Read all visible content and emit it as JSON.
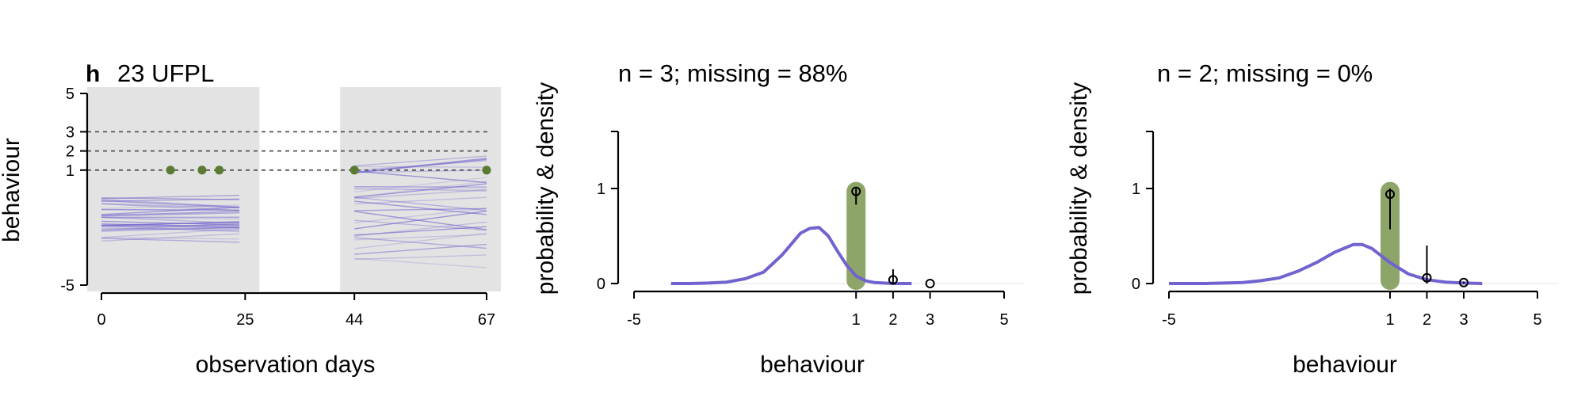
{
  "chart_data": [
    {
      "type": "line",
      "panel_label": "h",
      "title": "23 UFPL",
      "xlabel": "observation days",
      "ylabel": "behaviour",
      "x_ticks": [
        0,
        25,
        44,
        67
      ],
      "y_ticks": [
        5,
        3,
        2,
        1,
        -5
      ],
      "xlim": [
        0,
        67
      ],
      "ylim": [
        -5,
        5
      ],
      "reference_lines_y": [
        3,
        2,
        1
      ],
      "shaded_periods": [
        [
          0,
          25
        ],
        [
          44,
          67
        ]
      ],
      "colors": {
        "shade": "#e3e3e3",
        "trajectories": "#6e62cc",
        "observations": "#5b7a32"
      },
      "trajectory_bands": [
        {
          "x_range": [
            0,
            24
          ],
          "center": -1.5,
          "spread": 1.5,
          "count": 30
        },
        {
          "x_range": [
            44,
            67
          ],
          "center": -1.1,
          "spread": 3.2,
          "count": 30
        }
      ],
      "observations": [
        {
          "x": 12,
          "y": 1
        },
        {
          "x": 17.5,
          "y": 1
        },
        {
          "x": 20.5,
          "y": 1
        },
        {
          "x": 44,
          "y": 1
        },
        {
          "x": 67,
          "y": 1
        }
      ]
    },
    {
      "type": "line",
      "title": "n = 3; missing = 88%",
      "xlabel": "behaviour",
      "ylabel": "probability & density",
      "x_ticks": [
        -5,
        1,
        2,
        3,
        5
      ],
      "y_ticks": [
        0,
        1
      ],
      "xlim": [
        -5,
        5
      ],
      "ylim": [
        0,
        1.6
      ],
      "highlight_x": 1,
      "colors": {
        "density": "#7063cf",
        "highlight": "#8ea56a"
      },
      "density_curve": {
        "x": [
          -4,
          -3.5,
          -3,
          -2.5,
          -2,
          -1.5,
          -1,
          -0.5,
          -0.25,
          0,
          0.25,
          0.5,
          0.75,
          1,
          1.25,
          1.5,
          2,
          2.5
        ],
        "y": [
          0,
          0,
          0.005,
          0.015,
          0.05,
          0.12,
          0.3,
          0.53,
          0.58,
          0.59,
          0.5,
          0.34,
          0.19,
          0.08,
          0.03,
          0.01,
          0,
          0
        ]
      },
      "point_probabilities": [
        {
          "x": 1,
          "p": 0.97,
          "low": 0.83,
          "high": 1.0
        },
        {
          "x": 2,
          "p": 0.04,
          "low": 0.0,
          "high": 0.15
        },
        {
          "x": 3,
          "p": 0.0,
          "low": 0.0,
          "high": 0.0
        }
      ]
    },
    {
      "type": "line",
      "title": "n = 2; missing = 0%",
      "xlabel": "behaviour",
      "ylabel": "probability & density",
      "x_ticks": [
        -5,
        1,
        2,
        3,
        5
      ],
      "y_ticks": [
        0,
        1
      ],
      "xlim": [
        -5,
        5
      ],
      "ylim": [
        0,
        1.6
      ],
      "highlight_x": 1,
      "colors": {
        "density": "#7063cf",
        "highlight": "#8ea56a"
      },
      "density_curve": {
        "x": [
          -5,
          -4,
          -3.5,
          -3,
          -2.5,
          -2,
          -1.5,
          -1,
          -0.5,
          0,
          0.25,
          0.5,
          1,
          1.5,
          2,
          2.5,
          3,
          3.5
        ],
        "y": [
          0,
          0,
          0.005,
          0.01,
          0.03,
          0.06,
          0.13,
          0.22,
          0.33,
          0.41,
          0.41,
          0.37,
          0.22,
          0.1,
          0.04,
          0.015,
          0.005,
          0
        ]
      },
      "point_probabilities": [
        {
          "x": 1,
          "p": 0.94,
          "low": 0.57,
          "high": 1.0
        },
        {
          "x": 2,
          "p": 0.06,
          "low": 0.0,
          "high": 0.4
        },
        {
          "x": 3,
          "p": 0.01,
          "low": 0.0,
          "high": 0.02
        }
      ]
    }
  ]
}
